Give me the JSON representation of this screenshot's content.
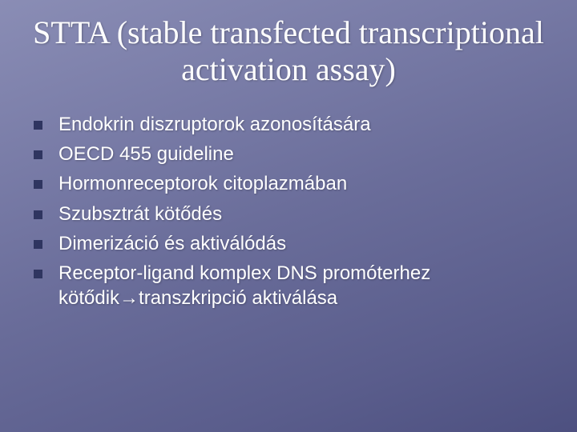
{
  "slide": {
    "title": "STTA (stable transfected transcriptional activation assay)",
    "title_fontsize": 40,
    "title_font": "Times New Roman",
    "title_color": "#ffffff",
    "background_gradient": [
      "#8a8db5",
      "#7a7da8",
      "#6a6d9a",
      "#5a5d8c",
      "#4d5080"
    ],
    "bullet_marker_color": "#2f3560",
    "bullet_fontsize": 24,
    "bullet_font": "Verdana",
    "bullet_color": "#ffffff",
    "bullets": [
      "Endokrin diszruptorok azonosítására",
      "OECD 455 guideline",
      "Hormonreceptorok citoplazmában",
      "Szubsztrát kötődés",
      "Dimerizáció és aktiválódás",
      "Receptor-ligand komplex DNS promóterhez kötődik→transzkripció aktiválása"
    ]
  }
}
